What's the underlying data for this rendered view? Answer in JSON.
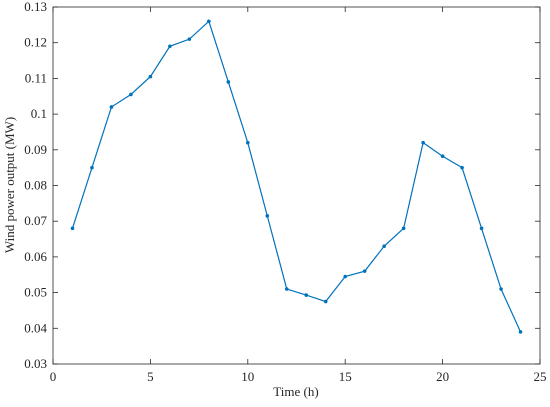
{
  "chart_data": {
    "type": "line",
    "xlabel": "Time (h)",
    "ylabel": "Wind power output (MW)",
    "x": [
      1,
      2,
      3,
      4,
      5,
      6,
      7,
      8,
      9,
      10,
      11,
      12,
      13,
      14,
      15,
      16,
      17,
      18,
      19,
      20,
      21,
      22,
      23,
      24
    ],
    "series": [
      {
        "color": "#0072bd",
        "values": [
          0.068,
          0.085,
          0.102,
          0.1055,
          0.1105,
          0.119,
          0.121,
          0.126,
          0.109,
          0.092,
          0.0715,
          0.051,
          0.0493,
          0.0475,
          0.0545,
          0.056,
          0.063,
          0.068,
          0.092,
          0.0882,
          0.085,
          0.068,
          0.051,
          0.039
        ]
      }
    ],
    "xlim": [
      0,
      25
    ],
    "xticks": [
      0,
      5,
      10,
      15,
      20,
      25
    ],
    "ylim": [
      0.03,
      0.13
    ],
    "yticks": [
      0.03,
      0.04,
      0.05,
      0.06,
      0.07,
      0.08,
      0.09,
      0.1,
      0.11,
      0.12,
      0.13
    ],
    "grid": false
  }
}
